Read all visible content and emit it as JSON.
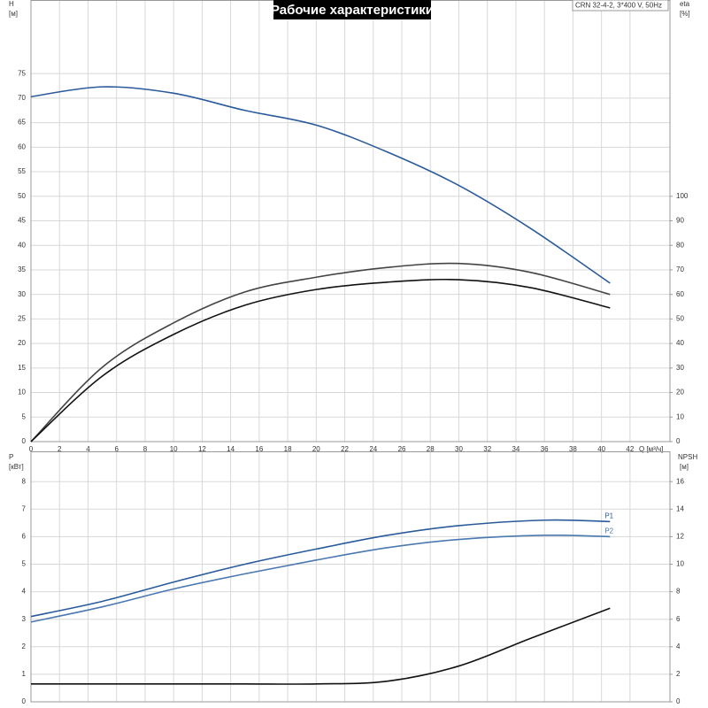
{
  "chart_data": [
    {
      "type": "line",
      "title": "Рабочие характеристики",
      "annotation": "CRN 32-4-2, 3*400 V, 50Hz",
      "y_label": "H",
      "y_unit": "[м]",
      "y2_label": "eta",
      "y2_unit": "[%]",
      "x_label": "Q [м³/ч]",
      "xlim": [
        0,
        44.8
      ],
      "xticks": [
        0,
        2,
        4,
        6,
        8,
        10,
        12,
        14,
        16,
        18,
        20,
        22,
        24,
        26,
        28,
        30,
        32,
        34,
        36,
        38,
        40,
        42
      ],
      "ylim": [
        0,
        90
      ],
      "yticks": [
        0,
        5,
        10,
        15,
        20,
        25,
        30,
        35,
        40,
        45,
        50,
        55,
        60,
        65,
        70,
        75
      ],
      "y2lim": [
        0,
        180
      ],
      "y2ticks": [
        0,
        10,
        20,
        30,
        40,
        50,
        60,
        70,
        80,
        90,
        100
      ],
      "grid": true,
      "series": [
        {
          "color": "#2a5a9a",
          "x": [
            0,
            5,
            10,
            15,
            20,
            25,
            30,
            35,
            40.6
          ],
          "values": [
            70.3,
            72.3,
            71,
            67.5,
            64.5,
            59,
            52.2,
            43.5,
            32.3
          ]
        },
        {
          "color": "#444444",
          "axis": "y2",
          "x": [
            0,
            5,
            10,
            15,
            20,
            25,
            30,
            35,
            40.6
          ],
          "values": [
            0,
            30.3,
            48.4,
            61,
            67,
            71,
            72.6,
            69,
            60
          ]
        },
        {
          "color": "#111111",
          "axis": "y2",
          "x": [
            0,
            5,
            10,
            15,
            20,
            25,
            30,
            35,
            40.6
          ],
          "values": [
            0,
            26.7,
            43.7,
            55.6,
            62,
            65,
            66,
            62.8,
            54.5
          ]
        }
      ]
    },
    {
      "type": "line",
      "y_label": "P",
      "y_unit": "[кВт]",
      "y2_label": "NPSH",
      "y2_unit": "[м]",
      "xlim": [
        0,
        44.8
      ],
      "ylim": [
        0,
        9.1
      ],
      "yticks": [
        0,
        1,
        2,
        3,
        4,
        5,
        6,
        7,
        8
      ],
      "y2lim": [
        0,
        18.2
      ],
      "y2ticks": [
        0,
        2,
        4,
        6,
        8,
        10,
        12,
        14,
        16
      ],
      "grid": true,
      "series": [
        {
          "name": "P1",
          "color": "#2a5a9a",
          "x": [
            0,
            5,
            10,
            15,
            20,
            25,
            30,
            36,
            40.6
          ],
          "values": [
            3.1,
            3.65,
            4.35,
            5.0,
            5.55,
            6.05,
            6.4,
            6.6,
            6.55
          ]
        },
        {
          "name": "P2",
          "color": "#4a78b0",
          "x": [
            0,
            5,
            10,
            15,
            20,
            25,
            30,
            36,
            40.6
          ],
          "values": [
            2.9,
            3.45,
            4.1,
            4.65,
            5.15,
            5.6,
            5.9,
            6.05,
            6.0
          ]
        },
        {
          "color": "#111111",
          "axis": "y2",
          "x": [
            0,
            10,
            15,
            20,
            25,
            30,
            35,
            40.6
          ],
          "values": [
            1.3,
            1.3,
            1.3,
            1.3,
            1.5,
            2.6,
            4.6,
            6.8
          ]
        }
      ]
    }
  ]
}
